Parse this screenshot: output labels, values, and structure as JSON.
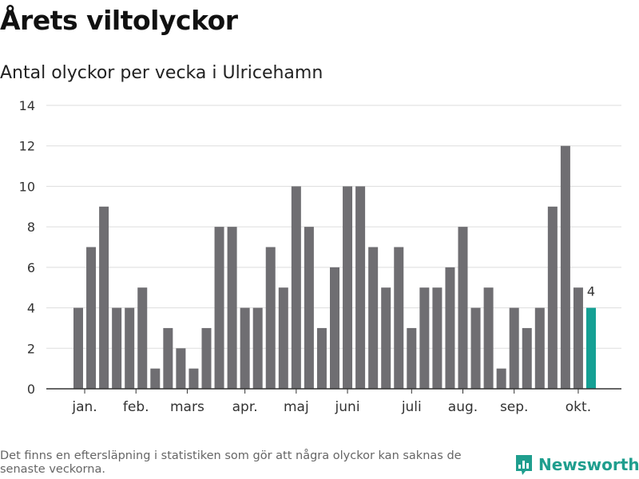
{
  "title": "Årets viltolyckor",
  "subtitle": "Antal olyckor per vecka i Ulricehamn",
  "footnote": "Det finns en eftersläpning i statistiken som gör att några olyckor kan saknas de senaste veckorna.",
  "brand": {
    "name": "Newsworthy",
    "icon": "newsworthy-logo-icon"
  },
  "colors": {
    "bar": "#6f6e72",
    "highlight": "#15a094",
    "grid": "#dddddd",
    "axis": "#333333"
  },
  "chart_data": {
    "type": "bar",
    "title": "Antal olyckor per vecka i Ulricehamn",
    "xlabel": "",
    "ylabel": "",
    "ylim": [
      0,
      14
    ],
    "yticks": [
      0,
      2,
      4,
      6,
      8,
      10,
      12,
      14
    ],
    "grid": true,
    "weeks": [
      1,
      2,
      3,
      4,
      5,
      6,
      7,
      8,
      9,
      10,
      11,
      12,
      13,
      14,
      15,
      16,
      17,
      18,
      19,
      20,
      21,
      22,
      23,
      24,
      25,
      26,
      27,
      28,
      29,
      30,
      31,
      32,
      33,
      34,
      35,
      36,
      37,
      38,
      39,
      40,
      41
    ],
    "values": [
      4,
      7,
      9,
      4,
      4,
      5,
      1,
      3,
      2,
      1,
      3,
      8,
      8,
      4,
      4,
      7,
      5,
      10,
      8,
      3,
      6,
      10,
      10,
      7,
      5,
      7,
      3,
      5,
      5,
      6,
      8,
      4,
      5,
      1,
      4,
      3,
      4,
      9,
      12,
      5,
      4
    ],
    "highlight_index": 40,
    "highlight_label": "4",
    "month_labels": [
      {
        "label": "jan.",
        "week": 1.5
      },
      {
        "label": "feb.",
        "week": 5.5
      },
      {
        "label": "mars",
        "week": 9.5
      },
      {
        "label": "apr.",
        "week": 14
      },
      {
        "label": "maj",
        "week": 18
      },
      {
        "label": "juni",
        "week": 22
      },
      {
        "label": "juli",
        "week": 27
      },
      {
        "label": "aug.",
        "week": 31
      },
      {
        "label": "sep.",
        "week": 35
      },
      {
        "label": "okt.",
        "week": 40
      }
    ]
  }
}
